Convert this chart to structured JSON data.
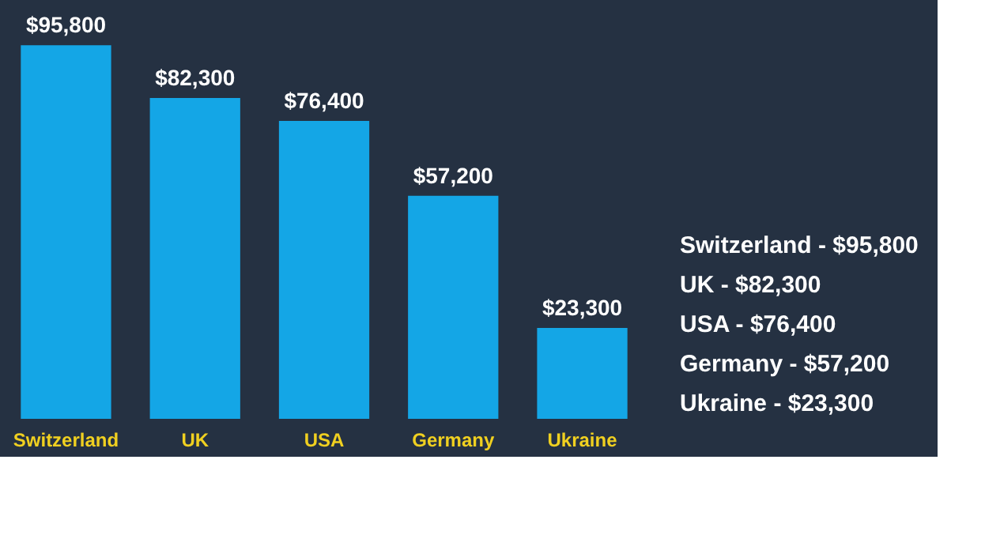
{
  "chart_data": {
    "type": "bar",
    "categories": [
      "Switzerland",
      "UK",
      "USA",
      "Germany",
      "Ukraine"
    ],
    "values": [
      95800,
      82300,
      76400,
      57200,
      23300
    ],
    "value_labels": [
      "$95,800",
      "$82,300",
      "$76,400",
      "$57,200",
      "$23,300"
    ],
    "color": "#14a6e6",
    "annotations": [
      "Switzerland - $95,800",
      "UK - $82,300",
      "USA - $76,400",
      "Germany - $57,200",
      "Ukraine - $23,300"
    ],
    "grid": false
  }
}
